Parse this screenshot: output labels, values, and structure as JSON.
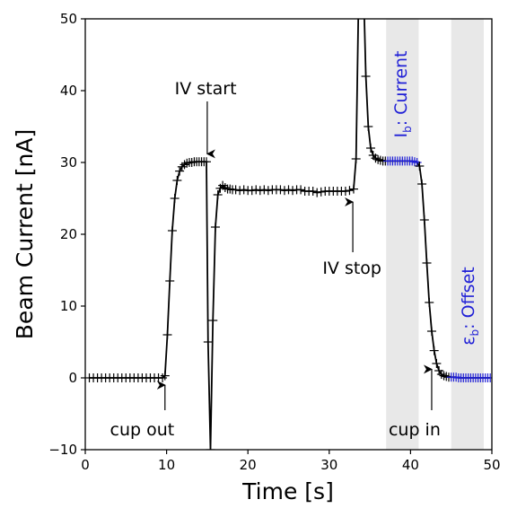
{
  "chart_data": {
    "type": "line",
    "xlabel": "Time [s]",
    "ylabel": "Beam Current [nA]",
    "xlim": [
      0,
      50
    ],
    "ylim": [
      -10,
      50
    ],
    "xticks": [
      0,
      10,
      20,
      30,
      40,
      50
    ],
    "yticks": [
      -10,
      0,
      10,
      20,
      30,
      40,
      50
    ],
    "grid": false,
    "shaded_regions": [
      {
        "x0": 37,
        "x1": 41,
        "color": "#e8e8e8"
      },
      {
        "x0": 45,
        "x1": 49,
        "color": "#e8e8e8"
      }
    ],
    "series": [
      {
        "color": "#000000",
        "marker": "+",
        "x": [
          0.5,
          1,
          1.5,
          2,
          2.5,
          3,
          3.5,
          4,
          4.5,
          5,
          5.5,
          6,
          6.5,
          7,
          7.5,
          8,
          8.5,
          9,
          9.5,
          9.8,
          10.1,
          10.4,
          10.7,
          11,
          11.3,
          11.6,
          11.9,
          12.2,
          12.5,
          12.8,
          13.1,
          13.4,
          13.7,
          14,
          14.3,
          14.6,
          14.9,
          15.1,
          15.4,
          15.7,
          16,
          16.3,
          16.6,
          16.9,
          17.2,
          17.5,
          17.8,
          18.1,
          18.5,
          19,
          19.5,
          20,
          20.5,
          21,
          21.5,
          22,
          22.5,
          23,
          23.5,
          24,
          24.5,
          25,
          25.5,
          26,
          26.5,
          27,
          27.5,
          28,
          28.5,
          29,
          29.5,
          30,
          30.5,
          31,
          31.5,
          32,
          32.5,
          33,
          33.3,
          33.6,
          33.9,
          34.2,
          34.5,
          34.8,
          35.1,
          35.4,
          35.7,
          36,
          36.3,
          36.6,
          36.9,
          37.2,
          37.5,
          37.8,
          38.1,
          38.4,
          38.7,
          39,
          39.3,
          39.6,
          39.9,
          40.2,
          40.5,
          40.8,
          41.1,
          41.4,
          41.7,
          42,
          42.3,
          42.6,
          42.9,
          43.2,
          43.5,
          43.8,
          44.1,
          44.4,
          44.7,
          45,
          45.3,
          45.6,
          45.9,
          46.2,
          46.5,
          46.8,
          47.1,
          47.4,
          47.7,
          48,
          48.3,
          48.6,
          48.9,
          49.2,
          49.5,
          49.8
        ],
        "y": [
          0,
          0,
          0,
          0,
          0,
          0,
          0,
          0,
          0,
          0,
          0,
          0,
          0,
          0,
          0,
          0,
          0,
          0,
          0,
          0.3,
          6,
          13.5,
          20.5,
          25,
          27.5,
          28.8,
          29.4,
          29.7,
          29.9,
          30,
          30,
          30.1,
          30.1,
          30.1,
          30.1,
          30.1,
          30.1,
          5,
          -10,
          8,
          21,
          25.5,
          26.4,
          26.8,
          26.5,
          26.3,
          26.3,
          26.2,
          26.2,
          26.1,
          26.2,
          26.1,
          26.1,
          26.2,
          26.1,
          26.2,
          26.1,
          26.2,
          26.2,
          26.2,
          26.1,
          26.2,
          26.1,
          26.2,
          26.2,
          26,
          26,
          26,
          25.8,
          25.9,
          26,
          26,
          26,
          26,
          26,
          26,
          26.1,
          26.3,
          30.5,
          52,
          63,
          55,
          42,
          35,
          32,
          31,
          30.6,
          30.4,
          30.3,
          30.2,
          30.2,
          30.2,
          30.2,
          30.2,
          30.2,
          30.2,
          30.2,
          30.2,
          30.2,
          30.2,
          30.2,
          30.2,
          30.1,
          30,
          29.5,
          27,
          22,
          16,
          10.5,
          6.5,
          3.8,
          2,
          1,
          0.5,
          0.3,
          0.2,
          0.1,
          0.1,
          0.1,
          0.1,
          0,
          0,
          0,
          0,
          0,
          0,
          0,
          0,
          0,
          0,
          0,
          0,
          0,
          0
        ]
      }
    ],
    "blue_segments": [
      {
        "x0": 37,
        "x1": 41,
        "color": "#1f1fd6"
      },
      {
        "x0": 45,
        "x1": 49.9,
        "color": "#1f1fd6"
      }
    ],
    "annotations": [
      {
        "text": "IV start",
        "text_x": 14.8,
        "text_y": 39.5,
        "arrow_x": 15,
        "arrow_from_y": 38.5,
        "arrow_to_y": 31.2
      },
      {
        "text": "IV stop",
        "text_x": 32.8,
        "text_y": 14.5,
        "arrow_x": 32.9,
        "arrow_from_y": 17.5,
        "arrow_to_y": 24.5
      },
      {
        "text": "cup out",
        "text_x": 7,
        "text_y": -8,
        "arrow_x": 9.8,
        "arrow_from_y": -4.5,
        "arrow_to_y": -1
      },
      {
        "text": "cup in",
        "text_x": 40.5,
        "text_y": -8,
        "arrow_x": 42.6,
        "arrow_from_y": -4.5,
        "arrow_to_y": 1.2
      }
    ],
    "vertical_annotations": [
      {
        "main": "I",
        "sub": "b",
        "rest": ": Current",
        "x": 39.5,
        "y": 39.5,
        "color": "#1f1fd6"
      },
      {
        "main": "ε",
        "sub": "b",
        "rest": ": Offset",
        "x": 47.8,
        "y": 10,
        "color": "#1f1fd6"
      }
    ]
  }
}
